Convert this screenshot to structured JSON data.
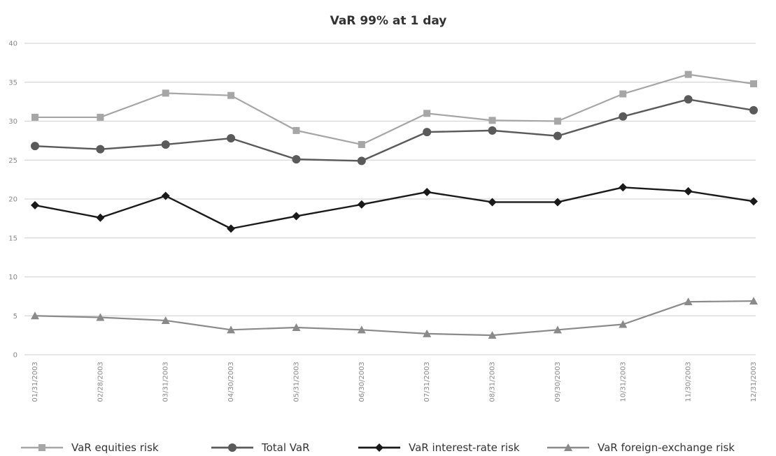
{
  "chart_data": {
    "type": "line",
    "title": "VaR 99% at 1 day",
    "xlabel": "",
    "ylabel": "",
    "ylim": [
      0,
      40
    ],
    "yticks": [
      0,
      5,
      10,
      15,
      20,
      25,
      30,
      35,
      40
    ],
    "grid": true,
    "legend_position": "bottom",
    "categories": [
      "01/31/2003",
      "02/28/2003",
      "03/31/2003",
      "04/30/2003",
      "05/31/2003",
      "06/30/2003",
      "07/31/2003",
      "08/31/2003",
      "09/30/2003",
      "10/31/2003",
      "11/30/2003",
      "12/31/2003"
    ],
    "series": [
      {
        "name": "VaR equities risk",
        "color": "#a6a6a6",
        "marker": "square",
        "width": 2.2,
        "values": [
          30.5,
          30.5,
          33.6,
          33.3,
          28.8,
          27.0,
          31.0,
          30.1,
          30.0,
          33.5,
          36.0,
          34.8
        ]
      },
      {
        "name": "Total VaR",
        "color": "#5a5a5a",
        "marker": "circle",
        "width": 2.4,
        "values": [
          26.8,
          26.4,
          27.0,
          27.8,
          25.1,
          24.9,
          28.6,
          28.8,
          28.1,
          30.6,
          32.8,
          31.4
        ]
      },
      {
        "name": "VaR interest-rate risk",
        "color": "#1a1a1a",
        "marker": "diamond",
        "width": 2.4,
        "values": [
          19.2,
          17.6,
          20.4,
          16.2,
          17.8,
          19.3,
          20.9,
          19.6,
          19.6,
          21.5,
          21.0,
          19.7
        ]
      },
      {
        "name": "VaR foreign-exchange risk",
        "color": "#8a8a8a",
        "marker": "triangle",
        "width": 2.2,
        "values": [
          5.0,
          4.8,
          4.4,
          3.2,
          3.5,
          3.2,
          2.7,
          2.5,
          3.2,
          3.9,
          6.8,
          6.9
        ]
      }
    ]
  }
}
